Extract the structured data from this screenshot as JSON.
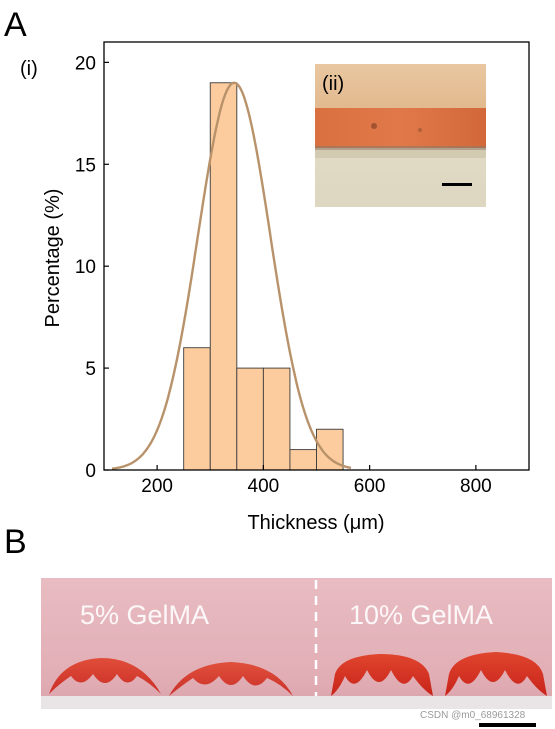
{
  "panels": {
    "a_letter": "A",
    "b_letter": "B"
  },
  "inset": {
    "label": "(ii)"
  },
  "chart_data": {
    "type": "bar",
    "panel_label": "(i)",
    "xlabel": "Thickness (μm)",
    "ylabel": "Percentage (%)",
    "xlim": [
      100,
      900
    ],
    "ylim": [
      0,
      21
    ],
    "xticks": [
      200,
      400,
      600,
      800
    ],
    "yticks": [
      0,
      5,
      10,
      15,
      20
    ],
    "bins": [
      {
        "x0": 250,
        "x1": 300,
        "value": 6
      },
      {
        "x0": 300,
        "x1": 350,
        "value": 19
      },
      {
        "x0": 350,
        "x1": 400,
        "value": 5
      },
      {
        "x0": 400,
        "x1": 450,
        "value": 5
      },
      {
        "x0": 450,
        "x1": 500,
        "value": 1
      },
      {
        "x0": 500,
        "x1": 550,
        "value": 2
      }
    ],
    "fit": {
      "type": "gaussian",
      "mean": 345,
      "sd": 68,
      "peak": 19
    },
    "bar_color": "#fdcc9e",
    "fit_color": "#b8926a"
  },
  "photo": {
    "label_left": "5% GelMA",
    "label_right": "10% GelMA"
  },
  "watermark": "CSDN @m0_68961328"
}
